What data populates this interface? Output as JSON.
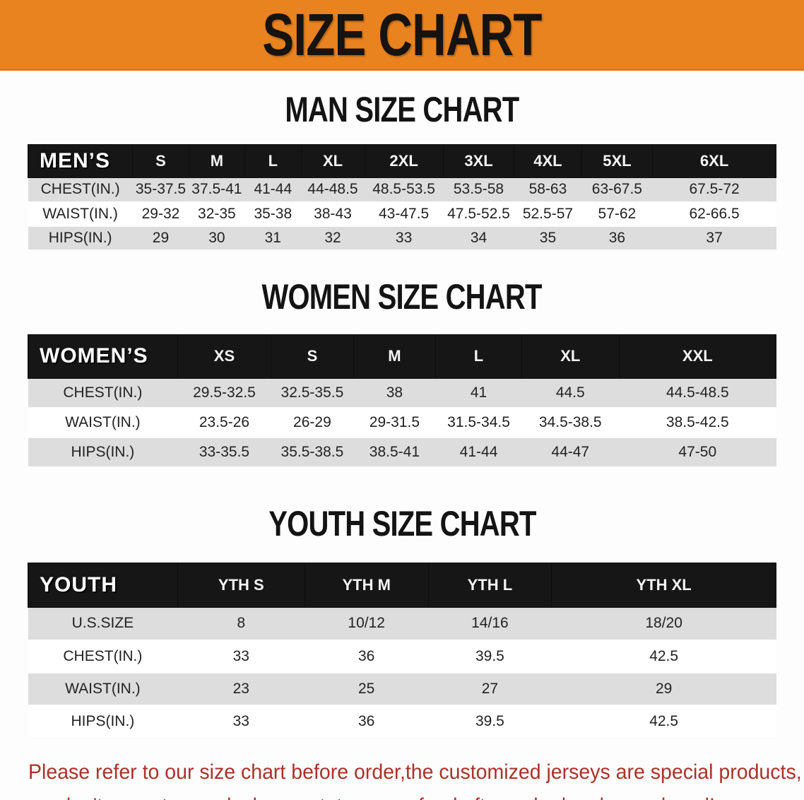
{
  "banner": {
    "title": "SIZE CHART",
    "bg_color": "#E8831F",
    "text_color": "#171310"
  },
  "sections": {
    "men": {
      "title": "MAN SIZE CHART",
      "header_label": "MEN’S",
      "sizes": [
        "S",
        "M",
        "L",
        "XL",
        "2XL",
        "3XL",
        "4XL",
        "5XL",
        "6XL"
      ],
      "rows": [
        {
          "label": "CHEST(IN.)",
          "values": [
            "35-37.5",
            "37.5-41",
            "41-44",
            "44-48.5",
            "48.5-53.5",
            "53.5-58",
            "58-63",
            "63-67.5",
            "67.5-72"
          ]
        },
        {
          "label": "WAIST(IN.)",
          "values": [
            "29-32",
            "32-35",
            "35-38",
            "38-43",
            "43-47.5",
            "47.5-52.5",
            "52.5-57",
            "57-62",
            "62-66.5"
          ]
        },
        {
          "label": "HIPS(IN.)",
          "values": [
            "29",
            "30",
            "31",
            "32",
            "33",
            "34",
            "35",
            "36",
            "37"
          ]
        }
      ]
    },
    "women": {
      "title": "WOMEN SIZE CHART",
      "header_label": "WOMEN’S",
      "sizes": [
        "XS",
        "S",
        "M",
        "L",
        "XL",
        "XXL"
      ],
      "rows": [
        {
          "label": "CHEST(IN.)",
          "values": [
            "29.5-32.5",
            "32.5-35.5",
            "38",
            "41",
            "44.5",
            "44.5-48.5"
          ]
        },
        {
          "label": "WAIST(IN.)",
          "values": [
            "23.5-26",
            "26-29",
            "29-31.5",
            "31.5-34.5",
            "34.5-38.5",
            "38.5-42.5"
          ]
        },
        {
          "label": "HIPS(IN.)",
          "values": [
            "33-35.5",
            "35.5-38.5",
            "38.5-41",
            "41-44",
            "44-47",
            "47-50"
          ]
        }
      ]
    },
    "youth": {
      "title": "YOUTH SIZE CHART",
      "header_label": "YOUTH",
      "sizes": [
        "YTH S",
        "YTH M",
        "YTH L",
        "YTH XL"
      ],
      "rows": [
        {
          "label": "U.S.SIZE",
          "values": [
            "8",
            "10/12",
            "14/16",
            "18/20"
          ]
        },
        {
          "label": "CHEST(IN.)",
          "values": [
            "33",
            "36",
            "39.5",
            "42.5"
          ]
        },
        {
          "label": "WAIST(IN.)",
          "values": [
            "23",
            "25",
            "27",
            "29"
          ]
        },
        {
          "label": "HIPS(IN.)",
          "values": [
            "33",
            "36",
            "39.5",
            "42.5"
          ]
        }
      ]
    }
  },
  "footer": {
    "line1": "Please refer to our size chart before order,the customized jerseys are special products,",
    "line2": "we don't accept cancel, change, teturn or refund after order has been placed!",
    "text_color": "#AD3128"
  }
}
